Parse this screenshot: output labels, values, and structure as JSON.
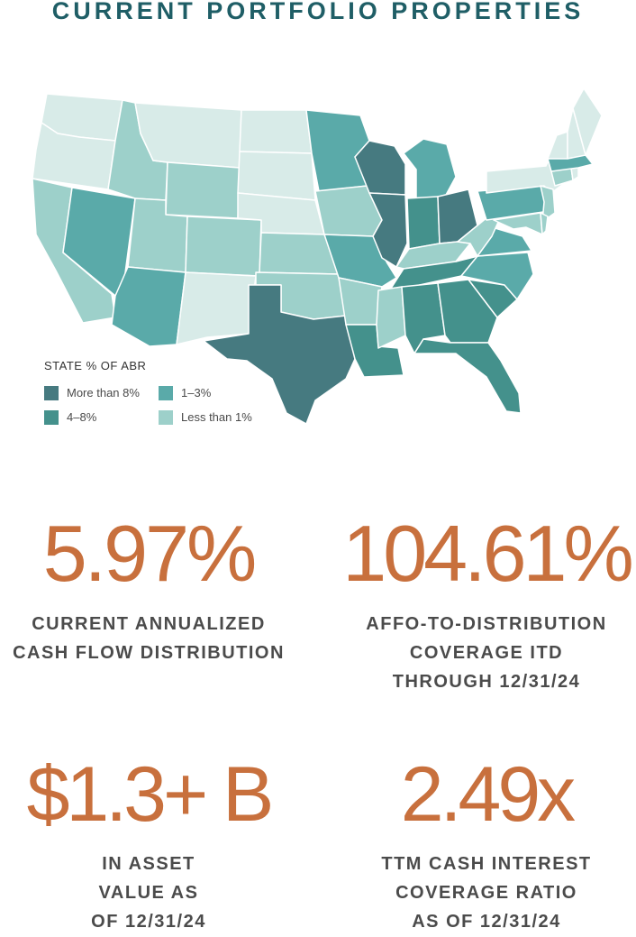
{
  "title": "CURRENT PORTFOLIO PROPERTIES",
  "legend": {
    "title": "STATE % OF ABR",
    "items": [
      {
        "label": "More than 8%",
        "color": "#467a80"
      },
      {
        "label": "1–3%",
        "color": "#5aaaa9"
      },
      {
        "label": "4–8%",
        "color": "#44918c"
      },
      {
        "label": "Less than 1%",
        "color": "#9dd0ca"
      }
    ]
  },
  "map": {
    "colors": {
      "no_data": "#d8ebe8",
      "less_than_1": "#9dd0ca",
      "one_to_three": "#5aaaa9",
      "four_to_eight": "#44918c",
      "more_than_8": "#467a80",
      "border": "#ffffff"
    },
    "states_by_category": {
      "more_than_8": [
        "Texas",
        "Illinois",
        "Wisconsin",
        "Ohio"
      ],
      "four_to_eight": [
        "Indiana",
        "Tennessee",
        "Alabama",
        "Georgia",
        "Louisiana",
        "Florida",
        "South Carolina"
      ],
      "one_to_three": [
        "Minnesota",
        "Michigan",
        "Missouri",
        "Arizona",
        "Nevada",
        "Pennsylvania",
        "Virginia",
        "North Carolina",
        "Massachusetts"
      ],
      "less_than_1": [
        "California",
        "Idaho",
        "Wyoming",
        "Utah",
        "Colorado",
        "Kansas",
        "Oklahoma",
        "Arkansas",
        "Mississippi",
        "Iowa",
        "Kentucky",
        "West Virginia",
        "New Jersey",
        "Maryland",
        "Delaware",
        "Connecticut"
      ],
      "no_data": [
        "Washington",
        "Oregon",
        "Montana",
        "North Dakota",
        "South Dakota",
        "Nebraska",
        "New Mexico",
        "New York",
        "Vermont",
        "New Hampshire",
        "Maine",
        "Rhode Island"
      ]
    }
  },
  "stats": [
    {
      "value": "5.97%",
      "caption": [
        "CURRENT ANNUALIZED",
        "CASH FLOW DISTRIBUTION"
      ]
    },
    {
      "value": "104.61%",
      "caption": [
        "AFFO-TO-DISTRIBUTION",
        "COVERAGE ITD",
        "THROUGH 12/31/24"
      ]
    },
    {
      "value": "$1.3+ B",
      "caption": [
        "IN ASSET",
        "VALUE AS",
        "OF 12/31/24"
      ]
    },
    {
      "value": "2.49x",
      "caption": [
        "TTM CASH INTEREST",
        "COVERAGE RATIO",
        "AS OF 12/31/24"
      ]
    }
  ]
}
